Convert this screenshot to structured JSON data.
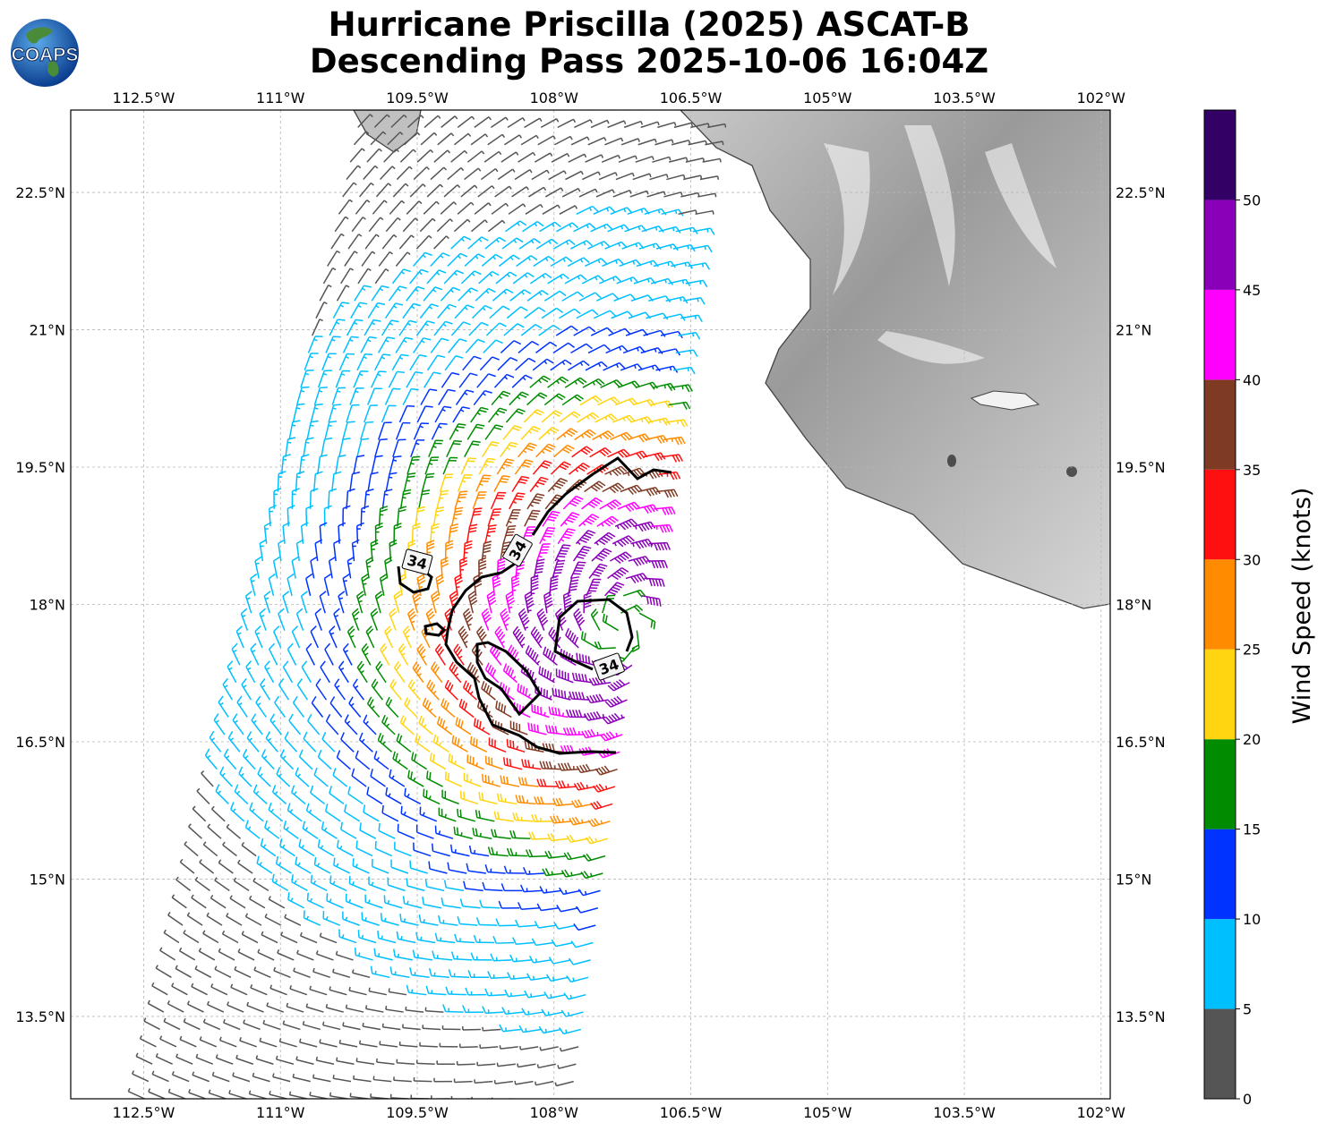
{
  "header": {
    "title_line1": "Hurricane Priscilla (2025) ASCAT-B",
    "title_line2": "Descending Pass 2025-10-06 16:04Z"
  },
  "logo": {
    "text": "COAPS",
    "icon": "globe-icon"
  },
  "axes": {
    "lon_ticks": [
      "112.5°W",
      "111°W",
      "109.5°W",
      "108°W",
      "106.5°W",
      "105°W",
      "103.5°W",
      "102°W"
    ],
    "lat_ticks": [
      "22.5°N",
      "21°N",
      "19.5°N",
      "18°N",
      "16.5°N",
      "15°N",
      "13.5°N"
    ],
    "lon_range": [
      -113.3,
      -101.9
    ],
    "lat_range": [
      12.6,
      23.4
    ],
    "grid": true
  },
  "colorbar": {
    "label": "Wind Speed (knots)",
    "ticks": [
      "0",
      "5",
      "10",
      "15",
      "20",
      "25",
      "30",
      "35",
      "40",
      "45",
      "50"
    ],
    "bins": [
      {
        "min": 0,
        "max": 5,
        "color": "#555555"
      },
      {
        "min": 5,
        "max": 10,
        "color": "#00bfff"
      },
      {
        "min": 10,
        "max": 15,
        "color": "#0033ff"
      },
      {
        "min": 15,
        "max": 20,
        "color": "#008c00"
      },
      {
        "min": 20,
        "max": 25,
        "color": "#ffd410"
      },
      {
        "min": 25,
        "max": 30,
        "color": "#ff8c00"
      },
      {
        "min": 30,
        "max": 35,
        "color": "#ff1010"
      },
      {
        "min": 35,
        "max": 40,
        "color": "#7f3a24"
      },
      {
        "min": 40,
        "max": 45,
        "color": "#ff00ff"
      },
      {
        "min": 45,
        "max": 50,
        "color": "#8a00b8"
      },
      {
        "min": 50,
        "max": 55,
        "color": "#330066"
      }
    ]
  },
  "contour": {
    "level_label": "34",
    "color": "#000000"
  },
  "storm": {
    "center_lon": -107.25,
    "center_lat": 17.75
  },
  "land": {
    "name": "Mexico coastline (shaded relief)"
  }
}
